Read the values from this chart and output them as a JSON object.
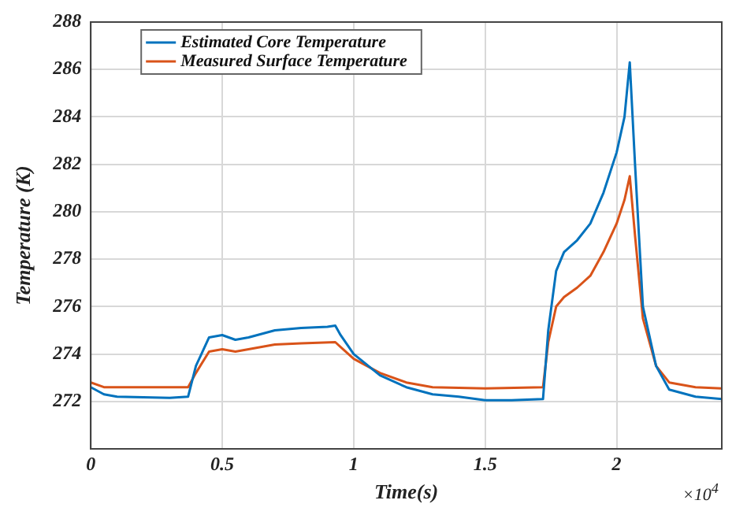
{
  "chart_data": {
    "type": "line",
    "xlabel": "Time(s)",
    "ylabel": "Temperature (K)",
    "xlim": [
      0,
      2.4
    ],
    "xticks": [
      0,
      0.5,
      1,
      1.5,
      2
    ],
    "ylim": [
      270,
      288
    ],
    "yticks": [
      {
        "value": 270,
        "label": null
      },
      272,
      274,
      276,
      278,
      280,
      282,
      284,
      286,
      288
    ],
    "grid": true,
    "legend": "top left",
    "marker": "none",
    "line_style": "solid",
    "annotations": [
      "×10$^{4}$"
    ],
    "series": [
      {
        "name": "Estimated Core Temperature",
        "color": "#0072bd",
        "x": [
          0,
          0.05,
          0.1,
          0.3,
          0.37,
          0.4,
          0.45,
          0.5,
          0.55,
          0.6,
          0.7,
          0.8,
          0.9,
          0.93,
          0.95,
          1.0,
          1.1,
          1.2,
          1.3,
          1.4,
          1.5,
          1.6,
          1.72,
          1.74,
          1.77,
          1.8,
          1.85,
          1.9,
          1.95,
          2.0,
          2.03,
          2.05,
          2.07,
          2.1,
          2.15,
          2.2,
          2.3,
          2.4
        ],
        "values": [
          272.6,
          272.3,
          272.2,
          272.15,
          272.2,
          273.5,
          274.7,
          274.8,
          274.6,
          274.7,
          275.0,
          275.1,
          275.15,
          275.2,
          274.8,
          274.0,
          273.1,
          272.6,
          272.3,
          272.2,
          272.05,
          272.05,
          272.1,
          275,
          277.5,
          278.3,
          278.8,
          279.5,
          280.8,
          282.5,
          284,
          286.3,
          282,
          276,
          273.5,
          272.5,
          272.2,
          272.1
        ]
      },
      {
        "name": "Measured Surface Temperature",
        "color": "#d95319",
        "x": [
          0,
          0.05,
          0.37,
          0.4,
          0.45,
          0.5,
          0.55,
          0.6,
          0.7,
          0.8,
          0.93,
          0.95,
          1.0,
          1.1,
          1.2,
          1.3,
          1.5,
          1.72,
          1.74,
          1.77,
          1.8,
          1.85,
          1.9,
          1.95,
          2.0,
          2.03,
          2.05,
          2.07,
          2.1,
          2.15,
          2.2,
          2.3,
          2.4
        ],
        "values": [
          272.8,
          272.6,
          272.6,
          273.2,
          274.1,
          274.2,
          274.1,
          274.2,
          274.4,
          274.45,
          274.5,
          274.3,
          273.8,
          273.2,
          272.8,
          272.6,
          272.55,
          272.6,
          274.5,
          276.0,
          276.4,
          276.8,
          277.3,
          278.3,
          279.5,
          280.5,
          281.5,
          279,
          275.5,
          273.5,
          272.8,
          272.6,
          272.55
        ]
      }
    ]
  }
}
